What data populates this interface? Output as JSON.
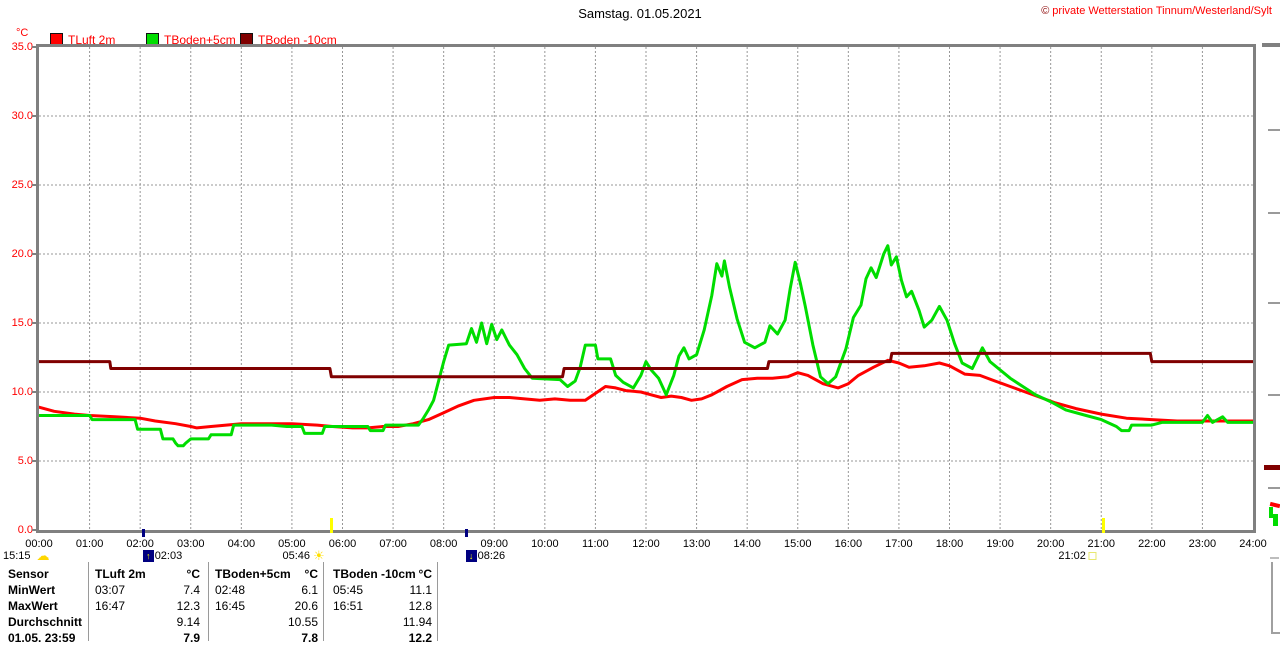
{
  "copyright": {
    "symbol": "©",
    "text": "private Wetterstation Tinnum/Westerland/Sylt"
  },
  "y_axis": {
    "tick_labels": [
      "35.0",
      "30.0",
      "25.0",
      "20.0",
      "15.0",
      "10.0",
      "5.0",
      "0.0"
    ]
  },
  "x_axis": {
    "tick_labels": [
      "00:00",
      "01:00",
      "02:00",
      "03:00",
      "04:00",
      "05:00",
      "06:00",
      "07:00",
      "08:00",
      "09:00",
      "10:00",
      "11:00",
      "12:00",
      "13:00",
      "14:00",
      "15:00",
      "16:00",
      "17:00",
      "18:00",
      "19:00",
      "20:00",
      "21:00",
      "22:00",
      "23:00",
      "24:00"
    ]
  },
  "events": [
    {
      "time": "15:15",
      "icon": "cloud-icon",
      "placement": "left-edge",
      "icon_side": "after",
      "tick": "none"
    },
    {
      "time": "02:03",
      "icon": "moonrise-icon",
      "placement": "at-time",
      "icon_side": "before",
      "tick": "navy"
    },
    {
      "time": "05:46",
      "icon": "sun-icon",
      "placement": "at-time",
      "icon_side": "after",
      "tick": "yellow"
    },
    {
      "time": "08:26",
      "icon": "moonset-icon",
      "placement": "at-time",
      "icon_side": "before",
      "tick": "navy"
    },
    {
      "time": "21:02",
      "icon": "sunset-icon",
      "placement": "at-time",
      "icon_side": "after",
      "tick": "yellow"
    }
  ],
  "stats_table": {
    "row_labels": [
      "Sensor",
      "MinWert",
      "MaxWert",
      "Durchschnitt",
      "01.05. 23:59"
    ],
    "columns": [
      {
        "header": "TLuft 2m",
        "unit": "°C",
        "min_time": "03:07",
        "min": "7.4",
        "max_time": "16:47",
        "max": "12.3",
        "avg": "9.14",
        "last": "7.9"
      },
      {
        "header": "TBoden+5cm",
        "unit": "°C",
        "min_time": "02:48",
        "min": "6.1",
        "max_time": "16:45",
        "max": "20.6",
        "avg": "10.55",
        "last": "7.8"
      },
      {
        "header": "TBoden -10cm",
        "unit": "°C",
        "min_time": "05:45",
        "min": "11.1",
        "max_time": "16:51",
        "max": "12.8",
        "avg": "11.94",
        "last": "12.2"
      }
    ]
  },
  "chart_data": {
    "type": "line",
    "title": "Samstag. 01.05.2021",
    "ylabel": "°C",
    "xlabel": "",
    "xlim": [
      0,
      24
    ],
    "ylim": [
      0,
      35
    ],
    "x_unit": "hours",
    "grid": true,
    "legend_position": "top-left",
    "series": [
      {
        "name": "TLuft 2m",
        "color": "#ff0000",
        "points": [
          [
            0,
            8.9
          ],
          [
            0.3,
            8.6
          ],
          [
            0.7,
            8.4
          ],
          [
            1,
            8.3
          ],
          [
            1.5,
            8.2
          ],
          [
            2,
            8.1
          ],
          [
            2.3,
            7.9
          ],
          [
            2.7,
            7.7
          ],
          [
            3,
            7.5
          ],
          [
            3.12,
            7.4
          ],
          [
            3.4,
            7.5
          ],
          [
            3.7,
            7.6
          ],
          [
            4,
            7.7
          ],
          [
            4.5,
            7.7
          ],
          [
            5,
            7.7
          ],
          [
            5.5,
            7.6
          ],
          [
            5.8,
            7.5
          ],
          [
            6.2,
            7.4
          ],
          [
            6.5,
            7.4
          ],
          [
            6.8,
            7.5
          ],
          [
            7.1,
            7.5
          ],
          [
            7.4,
            7.7
          ],
          [
            7.7,
            8
          ],
          [
            8,
            8.5
          ],
          [
            8.3,
            9
          ],
          [
            8.6,
            9.4
          ],
          [
            9,
            9.6
          ],
          [
            9.3,
            9.6
          ],
          [
            9.6,
            9.5
          ],
          [
            9.9,
            9.4
          ],
          [
            10.2,
            9.5
          ],
          [
            10.5,
            9.4
          ],
          [
            10.8,
            9.4
          ],
          [
            11,
            9.9
          ],
          [
            11.2,
            10.4
          ],
          [
            11.4,
            10.3
          ],
          [
            11.6,
            10.1
          ],
          [
            11.9,
            10
          ],
          [
            12.1,
            9.8
          ],
          [
            12.3,
            9.6
          ],
          [
            12.5,
            9.7
          ],
          [
            12.7,
            9.6
          ],
          [
            12.9,
            9.4
          ],
          [
            13.1,
            9.5
          ],
          [
            13.3,
            9.8
          ],
          [
            13.6,
            10.4
          ],
          [
            13.9,
            10.9
          ],
          [
            14.2,
            11
          ],
          [
            14.5,
            11
          ],
          [
            14.8,
            11.1
          ],
          [
            15,
            11.4
          ],
          [
            15.2,
            11.2
          ],
          [
            15.5,
            10.6
          ],
          [
            15.8,
            10.3
          ],
          [
            16,
            10.6
          ],
          [
            16.2,
            11.2
          ],
          [
            16.5,
            11.8
          ],
          [
            16.78,
            12.3
          ],
          [
            17,
            12.1
          ],
          [
            17.2,
            11.8
          ],
          [
            17.5,
            11.9
          ],
          [
            17.8,
            12.1
          ],
          [
            18,
            11.9
          ],
          [
            18.3,
            11.3
          ],
          [
            18.6,
            11.2
          ],
          [
            18.9,
            10.8
          ],
          [
            19.2,
            10.4
          ],
          [
            19.5,
            10
          ],
          [
            19.8,
            9.6
          ],
          [
            20.1,
            9.2
          ],
          [
            20.5,
            8.8
          ],
          [
            21,
            8.4
          ],
          [
            21.5,
            8.1
          ],
          [
            22,
            8
          ],
          [
            22.5,
            7.9
          ],
          [
            23,
            7.9
          ],
          [
            23.5,
            7.9
          ],
          [
            24,
            7.9
          ]
        ]
      },
      {
        "name": "TBoden+5cm",
        "color": "#00dd00",
        "points": [
          [
            0,
            8.3
          ],
          [
            0.5,
            8.3
          ],
          [
            1,
            8.3
          ],
          [
            1.05,
            8
          ],
          [
            1.9,
            8
          ],
          [
            1.95,
            7.3
          ],
          [
            2.4,
            7.3
          ],
          [
            2.45,
            6.6
          ],
          [
            2.65,
            6.6
          ],
          [
            2.7,
            6.3
          ],
          [
            2.75,
            6.1
          ],
          [
            2.85,
            6.1
          ],
          [
            2.9,
            6.3
          ],
          [
            3,
            6.6
          ],
          [
            3.35,
            6.6
          ],
          [
            3.4,
            6.9
          ],
          [
            3.8,
            6.9
          ],
          [
            3.85,
            7.6
          ],
          [
            4.6,
            7.6
          ],
          [
            4.9,
            7.5
          ],
          [
            5.2,
            7.5
          ],
          [
            5.25,
            7
          ],
          [
            5.6,
            7
          ],
          [
            5.65,
            7.5
          ],
          [
            6.5,
            7.5
          ],
          [
            6.55,
            7.2
          ],
          [
            6.8,
            7.2
          ],
          [
            6.85,
            7.6
          ],
          [
            7.5,
            7.6
          ],
          [
            7.6,
            8.1
          ],
          [
            7.7,
            8.7
          ],
          [
            7.8,
            9.4
          ],
          [
            7.9,
            10.8
          ],
          [
            8,
            12.2
          ],
          [
            8.1,
            13.4
          ],
          [
            8.45,
            13.5
          ],
          [
            8.55,
            14.6
          ],
          [
            8.65,
            13.6
          ],
          [
            8.75,
            15
          ],
          [
            8.85,
            13.5
          ],
          [
            8.95,
            14.9
          ],
          [
            9.05,
            13.8
          ],
          [
            9.15,
            14.5
          ],
          [
            9.3,
            13.4
          ],
          [
            9.45,
            12.7
          ],
          [
            9.6,
            11.7
          ],
          [
            9.75,
            11
          ],
          [
            10.3,
            10.9
          ],
          [
            10.45,
            10.4
          ],
          [
            10.6,
            10.8
          ],
          [
            10.7,
            11.8
          ],
          [
            10.8,
            13.4
          ],
          [
            11,
            13.4
          ],
          [
            11.05,
            12.4
          ],
          [
            11.3,
            12.4
          ],
          [
            11.4,
            11.2
          ],
          [
            11.55,
            10.7
          ],
          [
            11.75,
            10.3
          ],
          [
            11.9,
            11.2
          ],
          [
            12,
            12.2
          ],
          [
            12.1,
            11.6
          ],
          [
            12.25,
            11
          ],
          [
            12.4,
            9.8
          ],
          [
            12.55,
            11.2
          ],
          [
            12.65,
            12.6
          ],
          [
            12.75,
            13.2
          ],
          [
            12.85,
            12.4
          ],
          [
            13,
            12.7
          ],
          [
            13.15,
            14.5
          ],
          [
            13.3,
            17
          ],
          [
            13.4,
            19.3
          ],
          [
            13.5,
            18.4
          ],
          [
            13.55,
            19.5
          ],
          [
            13.65,
            17.6
          ],
          [
            13.8,
            15.3
          ],
          [
            13.95,
            13.6
          ],
          [
            14.15,
            13.2
          ],
          [
            14.35,
            13.6
          ],
          [
            14.45,
            14.8
          ],
          [
            14.6,
            14.2
          ],
          [
            14.75,
            15.2
          ],
          [
            14.85,
            17.5
          ],
          [
            14.95,
            19.4
          ],
          [
            15.05,
            17.9
          ],
          [
            15.15,
            16.2
          ],
          [
            15.3,
            13.4
          ],
          [
            15.45,
            11.1
          ],
          [
            15.6,
            10.6
          ],
          [
            15.75,
            11.1
          ],
          [
            15.95,
            13.1
          ],
          [
            16.1,
            15.4
          ],
          [
            16.25,
            16.3
          ],
          [
            16.35,
            18.2
          ],
          [
            16.45,
            19
          ],
          [
            16.55,
            18.3
          ],
          [
            16.7,
            20
          ],
          [
            16.78,
            20.6
          ],
          [
            16.85,
            19.2
          ],
          [
            16.95,
            19.8
          ],
          [
            17.05,
            18.1
          ],
          [
            17.15,
            16.9
          ],
          [
            17.25,
            17.3
          ],
          [
            17.4,
            15.9
          ],
          [
            17.5,
            14.7
          ],
          [
            17.65,
            15.2
          ],
          [
            17.8,
            16.2
          ],
          [
            17.95,
            15.2
          ],
          [
            18.1,
            13.5
          ],
          [
            18.25,
            12.1
          ],
          [
            18.45,
            11.7
          ],
          [
            18.65,
            13.2
          ],
          [
            18.8,
            12.2
          ],
          [
            19,
            11.6
          ],
          [
            19.2,
            11
          ],
          [
            19.45,
            10.4
          ],
          [
            19.7,
            9.8
          ],
          [
            20,
            9.3
          ],
          [
            20.3,
            8.7
          ],
          [
            20.7,
            8.3
          ],
          [
            21,
            8
          ],
          [
            21.3,
            7.5
          ],
          [
            21.4,
            7.2
          ],
          [
            21.55,
            7.2
          ],
          [
            21.6,
            7.6
          ],
          [
            22,
            7.6
          ],
          [
            22.2,
            7.8
          ],
          [
            23,
            7.8
          ],
          [
            23.1,
            8.3
          ],
          [
            23.2,
            7.8
          ],
          [
            23.4,
            8.2
          ],
          [
            23.5,
            7.8
          ],
          [
            24,
            7.8
          ]
        ]
      },
      {
        "name": "TBoden -10cm",
        "color": "#800000",
        "points": [
          [
            0,
            12.2
          ],
          [
            1.4,
            12.2
          ],
          [
            1.42,
            11.7
          ],
          [
            5.75,
            11.7
          ],
          [
            5.78,
            11.1
          ],
          [
            10.35,
            11.1
          ],
          [
            10.38,
            11.7
          ],
          [
            14.4,
            11.7
          ],
          [
            14.43,
            12.2
          ],
          [
            16.83,
            12.2
          ],
          [
            16.86,
            12.8
          ],
          [
            21.97,
            12.8
          ],
          [
            22,
            12.2
          ],
          [
            24,
            12.2
          ]
        ]
      }
    ]
  }
}
